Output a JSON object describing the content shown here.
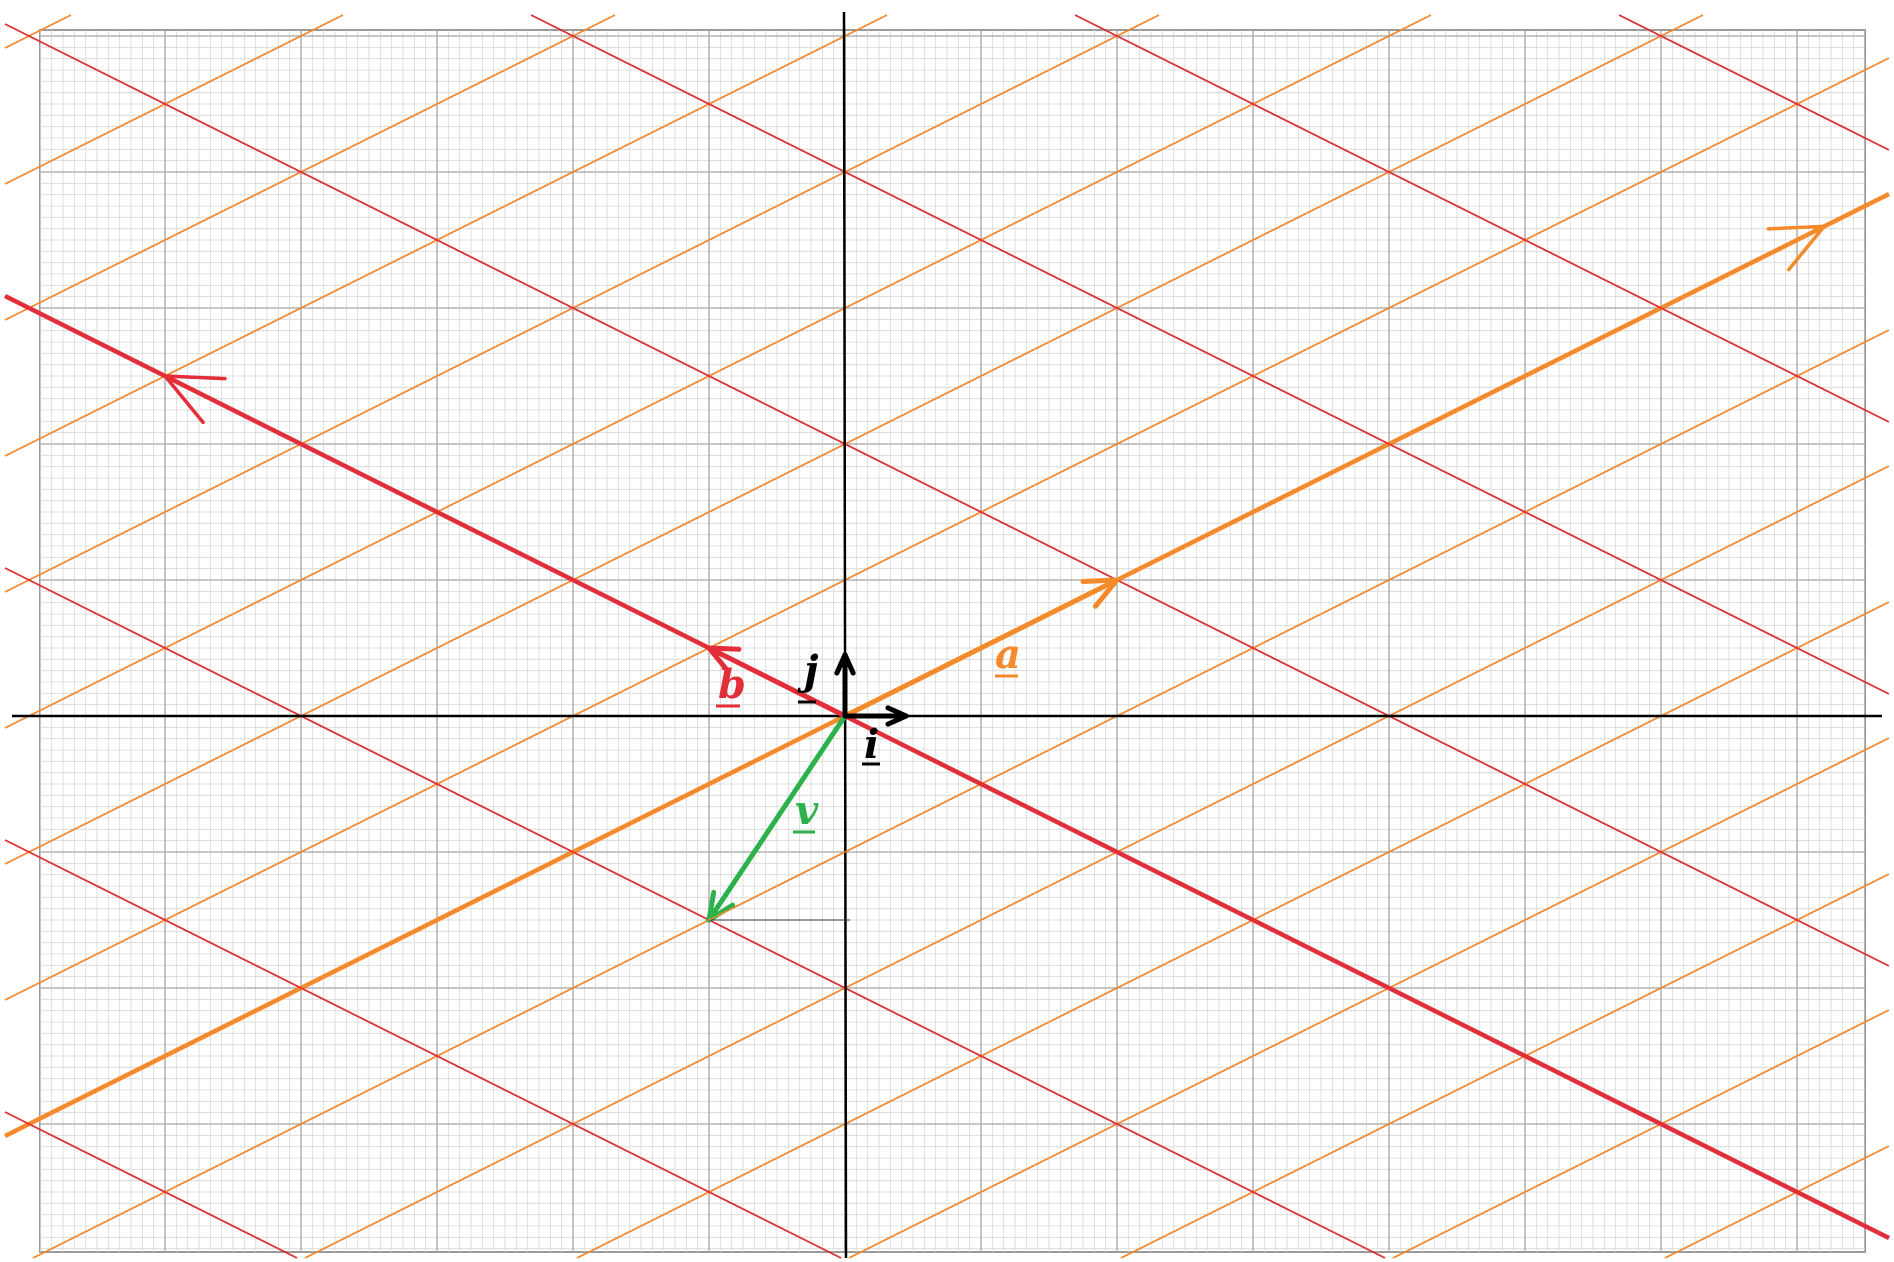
{
  "figure": {
    "labels": {
      "a": "a",
      "b": "b",
      "i": "i",
      "j": "j",
      "v": "v"
    },
    "basis_vectors": {
      "i": [
        1,
        0
      ],
      "j": [
        0,
        1
      ],
      "a": [
        2,
        1
      ],
      "b": [
        -1,
        0.5
      ]
    },
    "vector_v": [
      -1,
      -1.5
    ],
    "colors": {
      "grid_fine": "#d6d6d6",
      "grid_major": "#b4b4b4",
      "axes": "#000000",
      "a_family": "#f58a2a",
      "b_family": "#e32d38",
      "v": "#2bb24c"
    }
  }
}
